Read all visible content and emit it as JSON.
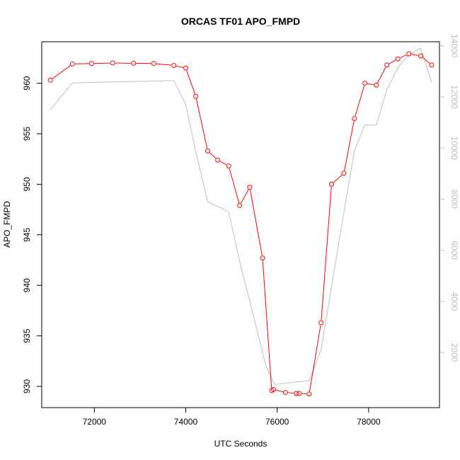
{
  "chart_data": {
    "type": "line",
    "title": "ORCAS TF01 APO_FMPD",
    "xlabel": "UTC Seconds",
    "ylabel": "APO_FMPD",
    "xlim": [
      70850,
      79550
    ],
    "ylim": [
      927.9,
      964.1
    ],
    "y2lim": [
      -158,
      14158
    ],
    "x_ticks": [
      72000,
      74000,
      76000,
      78000
    ],
    "y_ticks": [
      930,
      935,
      940,
      945,
      950,
      955,
      960
    ],
    "y2_ticks": [
      2000,
      4000,
      6000,
      8000,
      10000,
      12000,
      14000
    ],
    "x_tick_labels": [
      "72000",
      "74000",
      "76000",
      "78000"
    ],
    "y_tick_labels": [
      "930",
      "935",
      "940",
      "945",
      "950",
      "955",
      "960"
    ],
    "y2_tick_labels": [
      "2000",
      "4000",
      "6000",
      "8000",
      "10000",
      "12000",
      "14000"
    ],
    "colors": {
      "primary": "#ff0000",
      "secondary": "#bebebe"
    },
    "series": [
      {
        "axis": "left",
        "style": "line+points",
        "color": "#ff0000",
        "x": [
          71040,
          71520,
          71940,
          72400,
          72860,
          73300,
          73740,
          74000,
          74220,
          74480,
          74700,
          74940,
          75180,
          75400,
          75680,
          75880,
          75920,
          76180,
          76420,
          76480,
          76700,
          76960,
          77190,
          77460,
          77690,
          77920,
          78170,
          78400,
          78640,
          78880,
          79140,
          79380
        ],
        "values": [
          960.3,
          961.9,
          961.95,
          962.0,
          961.97,
          961.95,
          961.75,
          961.5,
          958.7,
          953.3,
          952.4,
          951.8,
          947.9,
          949.7,
          942.7,
          929.6,
          929.7,
          929.4,
          929.3,
          929.3,
          929.25,
          936.3,
          950.0,
          951.1,
          956.5,
          960.0,
          959.8,
          961.8,
          962.4,
          962.9,
          962.7,
          961.8
        ]
      },
      {
        "axis": "right",
        "style": "line",
        "color": "#bebebe",
        "x": [
          71040,
          71520,
          73740,
          74000,
          74200,
          74480,
          74940,
          75200,
          75500,
          75750,
          75940,
          76700,
          76960,
          77200,
          77460,
          77690,
          77920,
          78170,
          78400,
          78640,
          78880,
          79140,
          79380
        ],
        "values": [
          11500,
          12550,
          12640,
          11700,
          10000,
          7900,
          7500,
          5400,
          3300,
          1500,
          750,
          900,
          2100,
          4700,
          7500,
          9900,
          10900,
          10900,
          12300,
          13150,
          13650,
          13900,
          12550
        ]
      }
    ]
  }
}
